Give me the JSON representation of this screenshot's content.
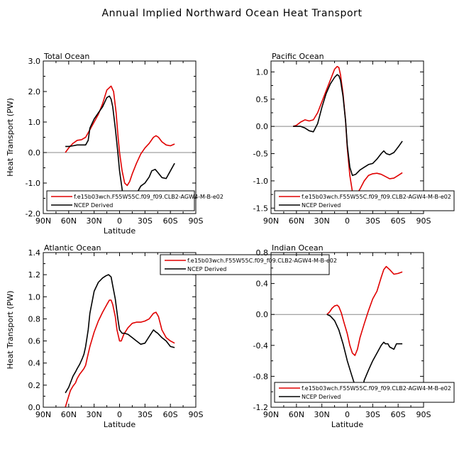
{
  "page_title": "Annual Implied Northward Ocean Heat Transport",
  "colors": {
    "model": "#e00000",
    "ncep": "#000000",
    "zero_line": "#888888"
  },
  "chart_data": [
    {
      "type": "line",
      "title": "Total Ocean",
      "xlabel": "Latitude",
      "ylabel": "Heat Transport (PW)",
      "xlim": [
        90,
        -90
      ],
      "ylim": [
        -2.0,
        3.0
      ],
      "yticks": [
        -2.0,
        -1.0,
        0.0,
        1.0,
        2.0,
        3.0
      ],
      "ytick_labels": [
        "-2.0",
        "-1.0",
        "0.0",
        "1.0",
        "2.0",
        "3.0"
      ],
      "xticks": [
        90,
        60,
        30,
        0,
        -30,
        -60,
        -90
      ],
      "xtick_labels": [
        "90N",
        "60N",
        "30N",
        "0",
        "30S",
        "60S",
        "90S"
      ],
      "zero_line": true,
      "legend": {
        "position": "bottom-inside",
        "entries": [
          "f.e15b03wch.F55W55C.f09_f09.CLB2-AGW4-M-B-e02",
          "NCEP Derived"
        ]
      },
      "series": [
        {
          "name": "f.e15b03wch.F55W55C.f09_f09.CLB2-AGW4-M-B-e02",
          "color": "#e00000",
          "x": [
            64,
            60,
            55,
            50,
            45,
            40,
            35,
            30,
            25,
            20,
            15,
            10,
            7,
            4,
            2,
            0,
            -3,
            -6,
            -9,
            -12,
            -15,
            -20,
            -25,
            -30,
            -35,
            -40,
            -43,
            -46,
            -50,
            -55,
            -60,
            -65
          ],
          "y": [
            0.0,
            0.15,
            0.3,
            0.4,
            0.42,
            0.5,
            0.75,
            1.0,
            1.25,
            1.6,
            2.05,
            2.18,
            2.0,
            1.3,
            0.6,
            0.0,
            -0.6,
            -1.0,
            -1.08,
            -0.95,
            -0.7,
            -0.35,
            -0.05,
            0.15,
            0.3,
            0.5,
            0.55,
            0.5,
            0.35,
            0.25,
            0.22,
            0.28
          ]
        },
        {
          "name": "NCEP Derived",
          "color": "#000000",
          "x": [
            64,
            60,
            55,
            50,
            45,
            40,
            37,
            35,
            30,
            25,
            20,
            15,
            12,
            10,
            8,
            5,
            2,
            0,
            -4,
            -8,
            -12,
            -16,
            -20,
            -25,
            -30,
            -35,
            -38,
            -42,
            -45,
            -50,
            -55,
            -60,
            -65
          ],
          "y": [
            0.2,
            0.2,
            0.22,
            0.25,
            0.25,
            0.25,
            0.4,
            0.8,
            1.1,
            1.3,
            1.5,
            1.8,
            1.85,
            1.75,
            1.5,
            0.8,
            0.0,
            -0.6,
            -1.4,
            -1.62,
            -1.65,
            -1.55,
            -1.35,
            -1.1,
            -1.0,
            -0.8,
            -0.6,
            -0.55,
            -0.65,
            -0.82,
            -0.85,
            -0.6,
            -0.35
          ]
        }
      ]
    },
    {
      "type": "line",
      "title": "Pacific Ocean",
      "xlabel": "",
      "ylabel": "",
      "xlim": [
        90,
        -90
      ],
      "ylim": [
        -1.6,
        1.2
      ],
      "yticks": [
        -1.5,
        -1.0,
        -0.5,
        0.0,
        0.5,
        1.0
      ],
      "ytick_labels": [
        "-1.5",
        "-1.0",
        "-0.5",
        "0.0",
        "0.5",
        "1.0"
      ],
      "xticks": [
        90,
        60,
        30,
        0,
        -30,
        -60,
        -90
      ],
      "xtick_labels": [
        "90N",
        "60N",
        "30N",
        "0",
        "30S",
        "60S",
        "90S"
      ],
      "zero_line": true,
      "legend": {
        "position": "bottom-inside",
        "entries": [
          "f.e15b03wch.F55W55C.f09_f09.CLB2-AGW4-M-B-e02",
          "NCEP Derived"
        ]
      },
      "series": [
        {
          "name": "f.e15b03wch.F55W55C.f09_f09.CLB2-AGW4-M-B-e02",
          "color": "#e00000",
          "x": [
            64,
            60,
            55,
            50,
            45,
            40,
            35,
            30,
            25,
            20,
            15,
            12,
            10,
            8,
            5,
            2,
            0,
            -3,
            -6,
            -10,
            -15,
            -20,
            -25,
            -30,
            -35,
            -40,
            -45,
            -50,
            -55,
            -60,
            -65
          ],
          "y": [
            0.0,
            0.02,
            0.08,
            0.12,
            0.1,
            0.12,
            0.25,
            0.45,
            0.65,
            0.85,
            1.05,
            1.1,
            1.08,
            0.95,
            0.6,
            0.1,
            -0.4,
            -0.9,
            -1.2,
            -1.27,
            -1.15,
            -1.0,
            -0.9,
            -0.87,
            -0.86,
            -0.88,
            -0.92,
            -0.96,
            -0.95,
            -0.9,
            -0.85
          ]
        },
        {
          "name": "NCEP Derived",
          "color": "#000000",
          "x": [
            64,
            60,
            55,
            50,
            45,
            40,
            35,
            30,
            25,
            20,
            15,
            12,
            10,
            8,
            5,
            2,
            0,
            -3,
            -6,
            -10,
            -15,
            -20,
            -25,
            -30,
            -35,
            -40,
            -43,
            -46,
            -50,
            -55,
            -60,
            -65
          ],
          "y": [
            0.0,
            0.0,
            0.0,
            -0.03,
            -0.08,
            -0.1,
            0.05,
            0.35,
            0.6,
            0.78,
            0.9,
            0.95,
            0.93,
            0.85,
            0.55,
            0.1,
            -0.35,
            -0.75,
            -0.9,
            -0.88,
            -0.8,
            -0.75,
            -0.7,
            -0.68,
            -0.6,
            -0.5,
            -0.45,
            -0.5,
            -0.52,
            -0.48,
            -0.38,
            -0.27
          ]
        }
      ]
    },
    {
      "type": "line",
      "title": "Atlantic Ocean",
      "xlabel": "Latitude",
      "ylabel": "Heat Transport (PW)",
      "xlim": [
        90,
        -90
      ],
      "ylim": [
        0.0,
        1.4
      ],
      "yticks": [
        0.0,
        0.2,
        0.4,
        0.6,
        0.8,
        1.0,
        1.2,
        1.4
      ],
      "ytick_labels": [
        "0.0",
        "0.2",
        "0.4",
        "0.6",
        "0.8",
        "1.0",
        "1.2",
        "1.4"
      ],
      "xticks": [
        90,
        60,
        30,
        0,
        -30,
        -60,
        -90
      ],
      "xtick_labels": [
        "90N",
        "60N",
        "30N",
        "0",
        "30S",
        "60S",
        "90S"
      ],
      "zero_line": false,
      "legend": {
        "position": "top-right-overflow",
        "entries": [
          "f.e15b03wch.F55W55C.f09_f09.CLB2-AGW4-M-B-e02",
          "NCEP Derived"
        ]
      },
      "series": [
        {
          "name": "f.e15b03wch.F55W55C.f09_f09.CLB2-AGW4-M-B-e02",
          "color": "#e00000",
          "x": [
            64,
            62,
            60,
            58,
            55,
            52,
            50,
            47,
            45,
            42,
            40,
            38,
            35,
            30,
            25,
            20,
            15,
            12,
            10,
            8,
            5,
            3,
            0,
            -2,
            -5,
            -10,
            -15,
            -20,
            -25,
            -30,
            -35,
            -40,
            -43,
            -46,
            -50,
            -55,
            -60,
            -65
          ],
          "y": [
            0.0,
            0.05,
            0.1,
            0.15,
            0.19,
            0.22,
            0.26,
            0.3,
            0.32,
            0.35,
            0.38,
            0.45,
            0.55,
            0.68,
            0.78,
            0.86,
            0.93,
            0.97,
            0.97,
            0.93,
            0.82,
            0.7,
            0.6,
            0.6,
            0.66,
            0.72,
            0.76,
            0.77,
            0.77,
            0.78,
            0.8,
            0.85,
            0.86,
            0.82,
            0.7,
            0.63,
            0.6,
            0.58
          ]
        },
        {
          "name": "NCEP Derived",
          "color": "#000000",
          "x": [
            64,
            60,
            57,
            55,
            52,
            50,
            47,
            44,
            42,
            40,
            37,
            35,
            30,
            25,
            20,
            16,
            13,
            10,
            8,
            5,
            2,
            0,
            -3,
            -6,
            -10,
            -15,
            -20,
            -25,
            -30,
            -35,
            -40,
            -43,
            -45,
            -50,
            -55,
            -60,
            -65
          ],
          "y": [
            0.13,
            0.18,
            0.24,
            0.28,
            0.32,
            0.35,
            0.39,
            0.44,
            0.48,
            0.55,
            0.7,
            0.85,
            1.05,
            1.13,
            1.17,
            1.19,
            1.2,
            1.18,
            1.1,
            0.98,
            0.8,
            0.7,
            0.67,
            0.67,
            0.66,
            0.63,
            0.6,
            0.57,
            0.58,
            0.64,
            0.7,
            0.68,
            0.67,
            0.63,
            0.6,
            0.55,
            0.54
          ]
        }
      ]
    },
    {
      "type": "line",
      "title": "Indian Ocean",
      "xlabel": "Latitude",
      "ylabel": "",
      "xlim": [
        90,
        -90
      ],
      "ylim": [
        -1.2,
        0.8
      ],
      "yticks": [
        -1.2,
        -0.8,
        -0.4,
        0.0,
        0.4,
        0.8
      ],
      "ytick_labels": [
        "-1.2",
        "-0.8",
        "-0.4",
        "0.0",
        "0.4",
        "0.8"
      ],
      "xticks": [
        90,
        60,
        30,
        0,
        -30,
        -60,
        -90
      ],
      "xtick_labels": [
        "90N",
        "60N",
        "30N",
        "0",
        "30S",
        "60S",
        "90S"
      ],
      "zero_line": true,
      "legend": {
        "position": "bottom-inside",
        "entries": [
          "f.e15b03wch.F55W55C.f09_f09.CLB2-AGW4-M-B-e02",
          "NCEP Derived"
        ]
      },
      "series": [
        {
          "name": "f.e15b03wch.F55W55C.f09_f09.CLB2-AGW4-M-B-e02",
          "color": "#e00000",
          "x": [
            24,
            21,
            18,
            15,
            12,
            10,
            7,
            4,
            0,
            -3,
            -6,
            -9,
            -12,
            -15,
            -20,
            -25,
            -30,
            -35,
            -40,
            -43,
            -46,
            -48,
            -50,
            -55,
            -60,
            -65
          ],
          "y": [
            0.0,
            0.03,
            0.08,
            0.11,
            0.12,
            0.1,
            0.02,
            -0.1,
            -0.25,
            -0.4,
            -0.5,
            -0.53,
            -0.45,
            -0.3,
            -0.12,
            0.05,
            0.2,
            0.3,
            0.48,
            0.58,
            0.62,
            0.6,
            0.58,
            0.52,
            0.53,
            0.55
          ]
        },
        {
          "name": "NCEP Derived",
          "color": "#000000",
          "x": [
            24,
            20,
            15,
            10,
            5,
            0,
            -5,
            -10,
            -13,
            -15,
            -18,
            -20,
            -25,
            -30,
            -35,
            -40,
            -43,
            -45,
            -48,
            -50,
            -55,
            -58,
            -60,
            -65
          ],
          "y": [
            0.0,
            -0.02,
            -0.08,
            -0.2,
            -0.38,
            -0.6,
            -0.78,
            -0.95,
            -1.02,
            -1.0,
            -0.95,
            -0.85,
            -0.72,
            -0.6,
            -0.5,
            -0.4,
            -0.36,
            -0.38,
            -0.38,
            -0.42,
            -0.45,
            -0.38,
            -0.38,
            -0.38
          ]
        }
      ]
    }
  ]
}
